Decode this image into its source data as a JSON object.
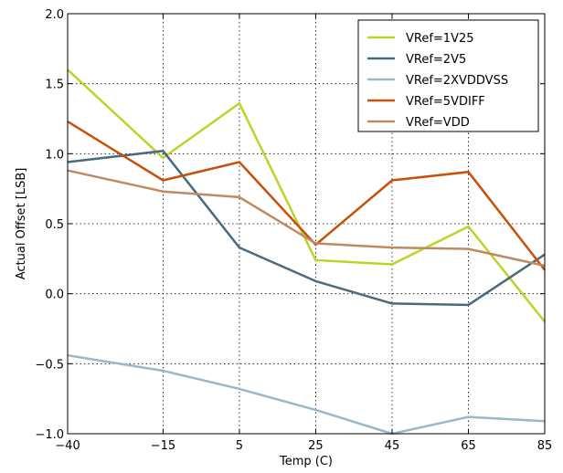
{
  "chart_data": {
    "type": "line",
    "xlabel": "Temp (C)",
    "ylabel": "Actual Offset [LSB]",
    "x": [
      -40,
      -15,
      5,
      25,
      45,
      65,
      85
    ],
    "x_tick_labels": [
      "−40",
      "−15",
      "5",
      "25",
      "45",
      "65",
      "85"
    ],
    "y_ticks": [
      -1.0,
      -0.5,
      0.0,
      0.5,
      1.0,
      1.5,
      2.0
    ],
    "y_tick_labels": [
      "−1.0",
      "−0.5",
      "0.0",
      "0.5",
      "1.0",
      "1.5",
      "2.0"
    ],
    "ylim": [
      -1.0,
      2.0
    ],
    "grid": true,
    "legend_position": "top-right",
    "series": [
      {
        "name": "VRef=1V25",
        "color": "#bcd42a",
        "values": [
          1.6,
          0.97,
          1.36,
          0.24,
          0.21,
          0.48,
          -0.2
        ]
      },
      {
        "name": "VRef=2V5",
        "color": "#4a6a80",
        "values": [
          0.94,
          1.02,
          0.33,
          0.09,
          -0.07,
          -0.08,
          0.28
        ]
      },
      {
        "name": "VRef=2XVDDVSS",
        "color": "#9ab8cc",
        "values": [
          -0.44,
          -0.55,
          -0.68,
          -0.83,
          -1.0,
          -0.88,
          -0.91
        ]
      },
      {
        "name": "VRef=5VDIFF",
        "color": "#c8500a",
        "values": [
          1.23,
          0.81,
          0.94,
          0.35,
          0.81,
          0.87,
          0.17
        ]
      },
      {
        "name": "VRef=VDD",
        "color": "#c08a5e",
        "values": [
          0.88,
          0.73,
          0.69,
          0.36,
          0.33,
          0.32,
          0.2
        ]
      }
    ]
  }
}
